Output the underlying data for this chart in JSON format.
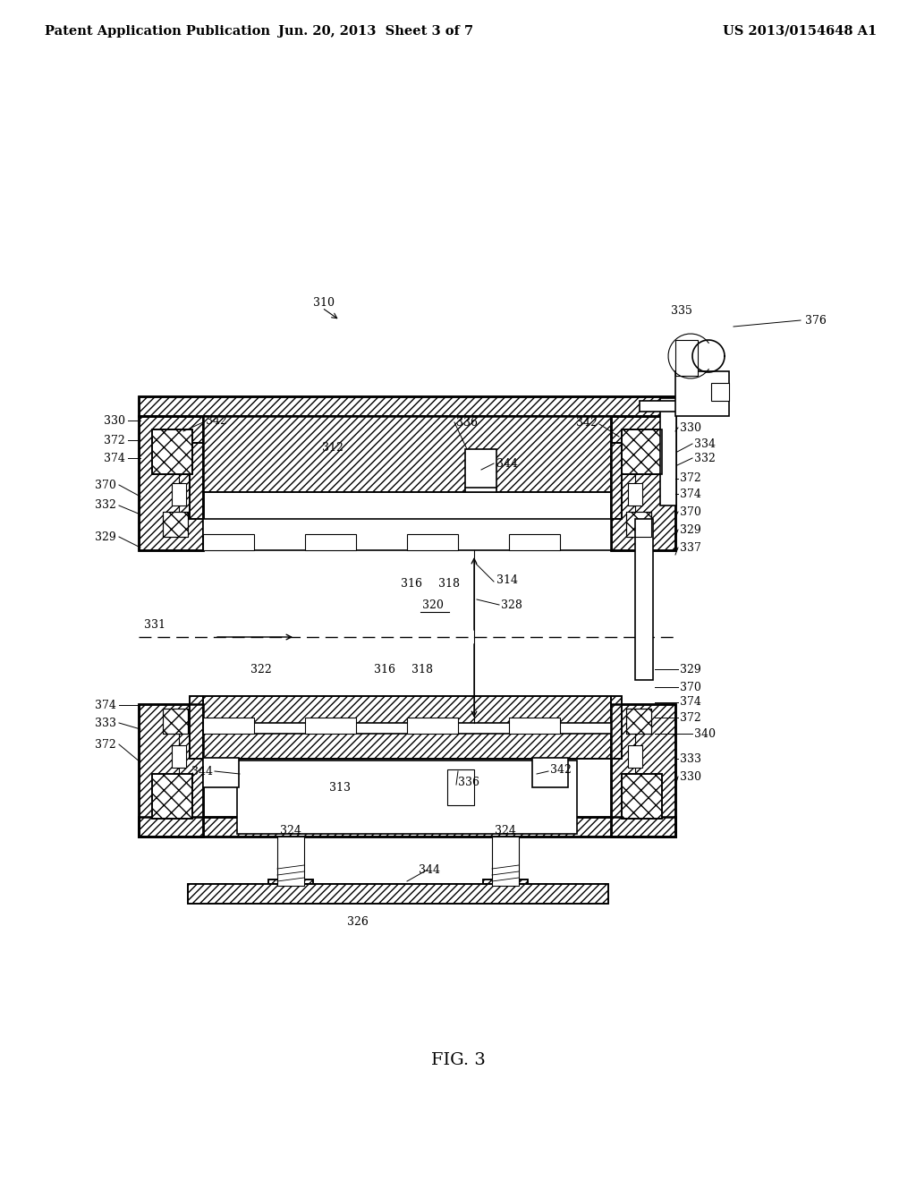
{
  "bg_color": "#ffffff",
  "header_left": "Patent Application Publication",
  "header_mid": "Jun. 20, 2013  Sheet 3 of 7",
  "header_right": "US 2013/0154648 A1",
  "figure_label": "FIG. 3",
  "header_fontsize": 10.5,
  "label_fontsize": 9,
  "fig_label_fontsize": 14
}
